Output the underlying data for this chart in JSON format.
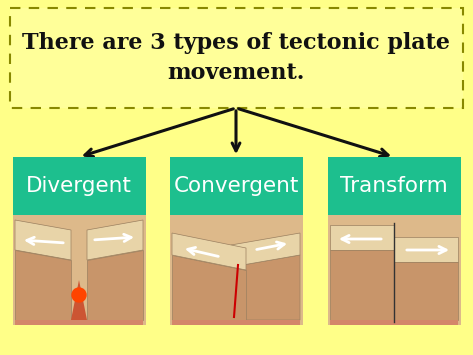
{
  "background_color": "#FFFF88",
  "title_text": "There are 3 types of tectonic plate\nmovement.",
  "title_box_facecolor": "#FFFF99",
  "title_box_edgecolor": "#888800",
  "teal_color": "#1DBF8E",
  "labels": [
    "Divergent",
    "Convergent",
    "Transform"
  ],
  "label_text_color": "#FFFFFF",
  "label_fontsize": 15.5,
  "title_fontsize": 16,
  "arrow_color": "#111111",
  "bg_gradient_top": "#FFFF88",
  "bg_gradient_bottom": "#FFFF44",
  "plate_top_color": "#E8D4A8",
  "plate_side_color": "#C8956A",
  "plate_bottom_color": "#D4876A",
  "lava_color": "#FF4400",
  "red_crack_color": "#CC0000",
  "white_arrow_color": "#FFFFFF"
}
